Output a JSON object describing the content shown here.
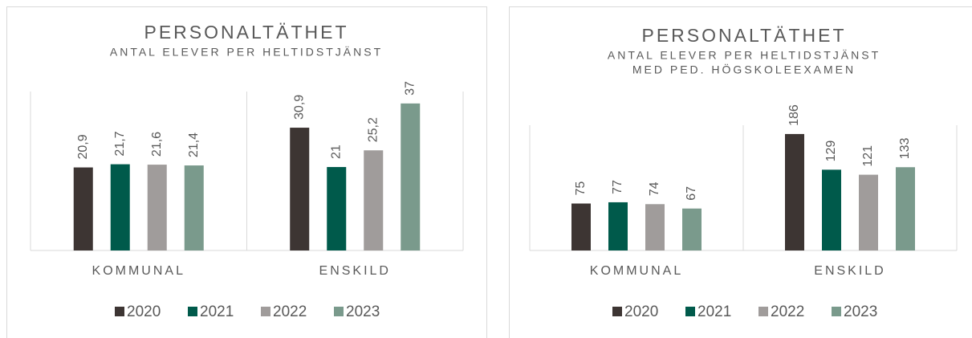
{
  "chart_data": [
    {
      "type": "bar",
      "title": "PERSONALTÄTHET",
      "subtitle": [
        "ANTAL ELEVER PER HELTIDSTJÄNST"
      ],
      "categories": [
        "KOMMUNAL",
        "ENSKILD"
      ],
      "series": [
        {
          "name": "2020",
          "color": "#3d3533",
          "values": [
            20.9,
            30.9
          ],
          "value_labels": [
            "20,9",
            "30,9"
          ]
        },
        {
          "name": "2021",
          "color": "#005a4b",
          "values": [
            21.7,
            21
          ],
          "value_labels": [
            "21,7",
            "21"
          ]
        },
        {
          "name": "2022",
          "color": "#a09c9b",
          "values": [
            21.6,
            25.2
          ],
          "value_labels": [
            "21,6",
            "25,2"
          ]
        },
        {
          "name": "2023",
          "color": "#7a9a8c",
          "values": [
            21.4,
            37
          ],
          "value_labels": [
            "21,4",
            "37"
          ]
        }
      ],
      "ylim": [
        0,
        40
      ],
      "legend": "bottom"
    },
    {
      "type": "bar",
      "title": "PERSONALTÄTHET",
      "subtitle": [
        "ANTAL ELEVER PER HELTIDSTJÄNST",
        "MED PED. HÖGSKOLEEXAMEN"
      ],
      "categories": [
        "KOMMUNAL",
        "ENSKILD"
      ],
      "series": [
        {
          "name": "2020",
          "color": "#3d3533",
          "values": [
            75,
            186
          ]
        },
        {
          "name": "2021",
          "color": "#005a4b",
          "values": [
            77,
            129
          ]
        },
        {
          "name": "2022",
          "color": "#a09c9b",
          "values": [
            74,
            121
          ]
        },
        {
          "name": "2023",
          "color": "#7a9a8c",
          "values": [
            67,
            133
          ]
        }
      ],
      "ylim": [
        0,
        200
      ],
      "legend": "bottom"
    }
  ]
}
